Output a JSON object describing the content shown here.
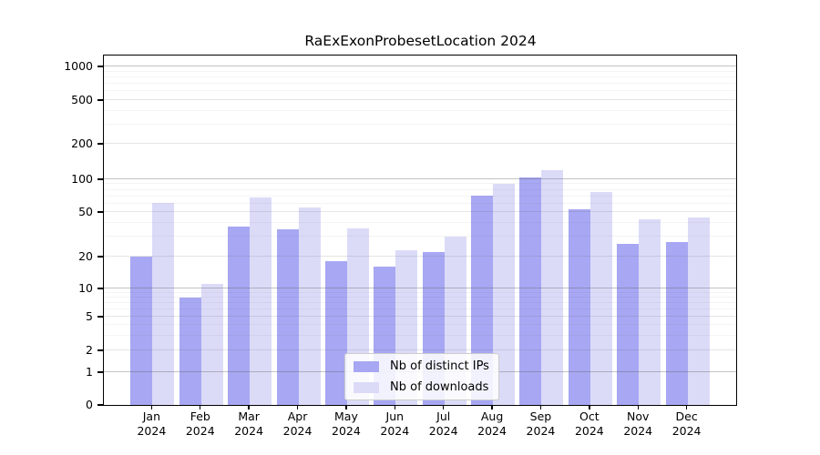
{
  "title": "RaExExonProbesetLocation 2024",
  "chart_data": {
    "type": "bar",
    "title": "RaExExonProbesetLocation 2024",
    "scale": "pseudo-log",
    "grid": true,
    "legend_position": "lower-center",
    "xlabel": "",
    "ylabel": "",
    "categories": [
      "Jan",
      "Feb",
      "Mar",
      "Apr",
      "May",
      "Jun",
      "Jul",
      "Aug",
      "Sep",
      "Oct",
      "Nov",
      "Dec"
    ],
    "year": "2024",
    "yticks": [
      0,
      1,
      2,
      5,
      10,
      20,
      50,
      100,
      200,
      500,
      1000
    ],
    "ylim": [
      0,
      1250
    ],
    "series": [
      {
        "name": "Nb of distinct IPs",
        "color": "#a7a7f3",
        "values": [
          20,
          8,
          37,
          35,
          18,
          16,
          22,
          71,
          103,
          53,
          26,
          27
        ]
      },
      {
        "name": "Nb of downloads",
        "color": "#dbdbf8",
        "values": [
          61,
          11,
          68,
          55,
          36,
          23,
          30,
          91,
          120,
          77,
          43,
          45
        ]
      }
    ]
  }
}
